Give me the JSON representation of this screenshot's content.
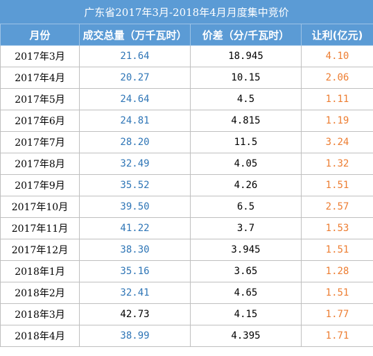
{
  "title": "广东省2017年3月-2018年4月月度集中竞价",
  "headers": [
    "月份",
    "成交总量（万千瓦时）",
    "价差（分/千瓦时）",
    "让利(亿元)"
  ],
  "colors": {
    "header_bg": "#5b9bd5",
    "volume": "#2e75b6",
    "profit": "#ed7d31"
  },
  "rows": [
    {
      "month": "2017年3月",
      "volume": "21.64",
      "spread": "18.945",
      "profit": "4.10"
    },
    {
      "month": "2017年4月",
      "volume": "20.27",
      "spread": "10.15",
      "profit": "2.06"
    },
    {
      "month": "2017年5月",
      "volume": "24.64",
      "spread": "4.5",
      "profit": "1.11"
    },
    {
      "month": "2017年6月",
      "volume": "24.81",
      "spread": "4.815",
      "profit": "1.19"
    },
    {
      "month": "2017年7月",
      "volume": "28.20",
      "spread": "11.5",
      "profit": "3.24"
    },
    {
      "month": "2017年8月",
      "volume": "32.49",
      "spread": "4.05",
      "profit": "1.32"
    },
    {
      "month": "2017年9月",
      "volume": "35.52",
      "spread": "4.26",
      "profit": "1.51"
    },
    {
      "month": "2017年10月",
      "volume": "39.50",
      "spread": "6.5",
      "profit": "2.57"
    },
    {
      "month": "2017年11月",
      "volume": "41.22",
      "spread": "3.7",
      "profit": "1.53"
    },
    {
      "month": "2017年12月",
      "volume": "38.30",
      "spread": "3.945",
      "profit": "1.51"
    },
    {
      "month": "2018年1月",
      "volume": "35.16",
      "spread": "3.65",
      "profit": "1.28"
    },
    {
      "month": "2018年2月",
      "volume": "32.41",
      "spread": "4.65",
      "profit": "1.51"
    },
    {
      "month": "2018年3月",
      "volume": "42.73",
      "spread": "4.15",
      "profit": "1.77"
    },
    {
      "month": "2018年4月",
      "volume": "38.99",
      "spread": "4.395",
      "profit": "1.71"
    }
  ]
}
